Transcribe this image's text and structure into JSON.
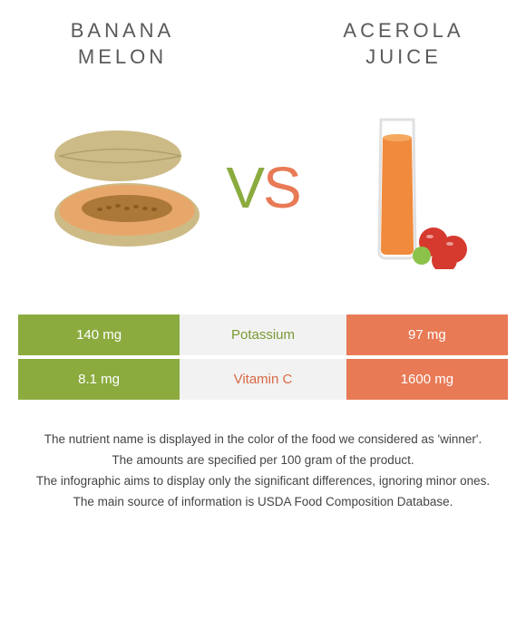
{
  "left": {
    "title_line1": "Banana",
    "title_line2": "melon",
    "title_fontsize": 22,
    "color": "#8bab3f",
    "color_dark": "#7a9a35"
  },
  "right": {
    "title_line1": "Acerola",
    "title_line2": "juice",
    "title_fontsize": 22,
    "color": "#e87a56",
    "color_dark": "#d96a46"
  },
  "vs": {
    "v": "V",
    "s": "S"
  },
  "table": {
    "rows": [
      {
        "left_value": "140 mg",
        "nutrient": "Potassium",
        "right_value": "97 mg",
        "winner": "left"
      },
      {
        "left_value": "8.1 mg",
        "nutrient": "Vitamin C",
        "right_value": "1600 mg",
        "winner": "right"
      }
    ],
    "mid_bg": "#f2f2f2"
  },
  "notes": [
    "The nutrient name is displayed in the color of the food we considered as 'winner'.",
    "The amounts are specified per 100 gram of the product.",
    "The infographic aims to display only the significant differences, ignoring minor ones.",
    "The main source of information is USDA Food Composition Database."
  ],
  "illustration": {
    "melon": {
      "skin": "#cdbb87",
      "flesh": "#e8a76a",
      "seeds": "#a07030"
    },
    "juice": {
      "liquid": "#f08a3c",
      "glass": "#e0e0e0",
      "cherry_red": "#d63a2e",
      "cherry_green": "#8bc34a"
    }
  }
}
